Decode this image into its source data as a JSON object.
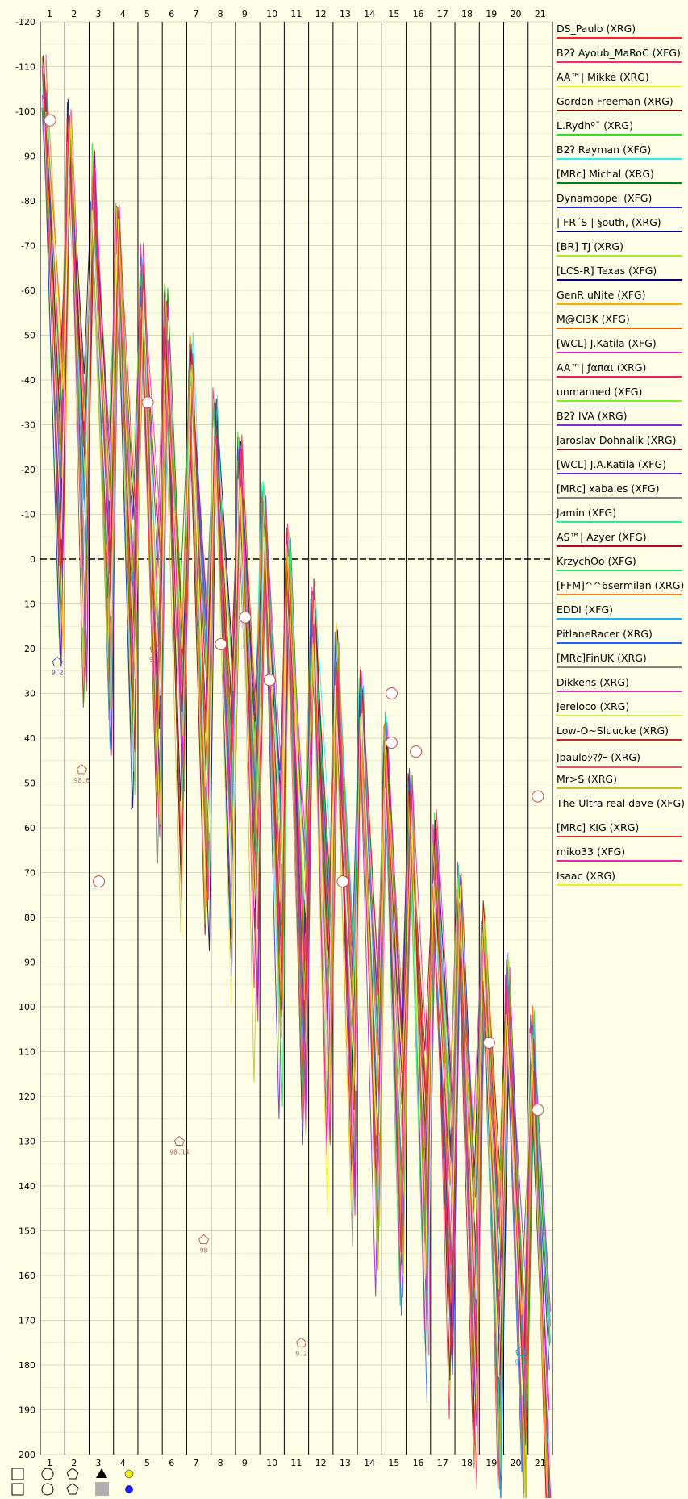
{
  "chart_data": {
    "type": "line",
    "title": "",
    "xlabel": "",
    "ylabel": "",
    "x": [
      1,
      2,
      3,
      4,
      5,
      6,
      7,
      8,
      9,
      10,
      11,
      12,
      13,
      14,
      15,
      16,
      17,
      18,
      19,
      20,
      21
    ],
    "x_tick_labels": [
      "1",
      "2",
      "3",
      "4",
      "5",
      "6",
      "7",
      "8",
      "9",
      "10",
      "11",
      "12",
      "13",
      "14",
      "15",
      "16",
      "17",
      "18",
      "19",
      "20",
      "21"
    ],
    "ylim": [
      -120,
      200
    ],
    "y_tick_labels": [
      "-120",
      "-110",
      "-100",
      "-90",
      "-80",
      "-70",
      "-60",
      "-50",
      "-40",
      "-30",
      "-20",
      "-10",
      "0",
      "10",
      "20",
      "30",
      "40",
      "50",
      "60",
      "70",
      "80",
      "90",
      "100",
      "110",
      "120",
      "130",
      "140",
      "150",
      "160",
      "170",
      "180",
      "190",
      "200"
    ],
    "zero_line": 0,
    "grid": true,
    "legend_position": "right",
    "series": [
      {
        "name": "DS_Paulo (XRG)",
        "color": "#ff2020"
      },
      {
        "name": "B2ʔ Ayoub_MaRoC (XFG)",
        "color": "#ff2080"
      },
      {
        "name": "AA™| Mikke (XRG)",
        "color": "#f0f020"
      },
      {
        "name": "Gordon Freeman (XRG)",
        "color": "#800000"
      },
      {
        "name": "L.Rydhº¯ (XRG)",
        "color": "#30e030"
      },
      {
        "name": "B2ʔ Rayman (XFG)",
        "color": "#20f0f0"
      },
      {
        "name": "[MRc] Michal (XRG)",
        "color": "#008000"
      },
      {
        "name": "Dynamoopel (XFG)",
        "color": "#2020d0"
      },
      {
        "name": "| FR´S | §outh, (XRG)",
        "color": "#000090"
      },
      {
        "name": "[BR] TJ (XRG)",
        "color": "#a0f020"
      },
      {
        "name": "[LCS-R] Texas (XFG)",
        "color": "#000060"
      },
      {
        "name": "GenR uNite (XFG)",
        "color": "#f0b000"
      },
      {
        "name": "M@Cl3K (XFG)",
        "color": "#f06000"
      },
      {
        "name": "[WCL] J.Katila (XFG)",
        "color": "#f020d0"
      },
      {
        "name": "AA™| ƒαπαι (XRG)",
        "color": "#f02060"
      },
      {
        "name": "unmanned (XFG)",
        "color": "#80f020"
      },
      {
        "name": "B2ʔ IVA (XRG)",
        "color": "#9020e0"
      },
      {
        "name": "Jaroslav Dohnalík (XRG)",
        "color": "#800020"
      },
      {
        "name": "[WCL] J.A.Katila (XFG)",
        "color": "#6020e0"
      },
      {
        "name": "[MRc] xabales (XFG)",
        "color": "#808080"
      },
      {
        "name": "Jamin (XFG)",
        "color": "#20f0a0"
      },
      {
        "name": "AS™| Azyer (XFG)",
        "color": "#c00020"
      },
      {
        "name": "KrzychOo (XFG)",
        "color": "#20e060"
      },
      {
        "name": "[FFM]^^6sermilan (XRG)",
        "color": "#f08020"
      },
      {
        "name": "EDDI (XFG)",
        "color": "#20b0f0"
      },
      {
        "name": "PitlaneRacer (XRG)",
        "color": "#2060f0"
      },
      {
        "name": "[MRc]FinUK (XRG)",
        "color": "#808080"
      },
      {
        "name": "Dikkens (XRG)",
        "color": "#e020c0"
      },
      {
        "name": "Jereloco (XRG)",
        "color": "#c0f040"
      },
      {
        "name": "Low-O~Sluucke (XRG)",
        "color": "#c02020"
      },
      {
        "name": "Jpauloｼﾏｸｰ (XRG)",
        "color": "#d06060"
      },
      {
        "name": "Mr>S (XRG)",
        "color": "#c0c020"
      },
      {
        "name": "The Ultra real dave (XFG)",
        "color": "#ffffe8"
      },
      {
        "name": "[MRc] KIG (XRG)",
        "color": "#f02020"
      },
      {
        "name": "miko33 (XFG)",
        "color": "#f020a0"
      },
      {
        "name": "Isaac (XRG)",
        "color": "#f0f020"
      }
    ],
    "annotations": [
      "9.2",
      "98.6",
      "9.1",
      "98.14",
      "98",
      "9.2",
      "9.7"
    ],
    "note": "Lap-by-lap race position chart; per-series line values are too dense to read individually."
  }
}
